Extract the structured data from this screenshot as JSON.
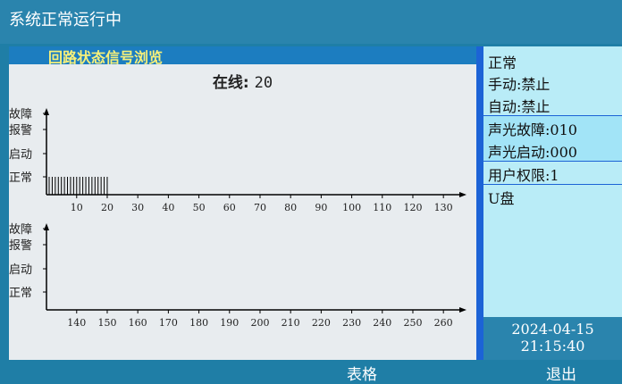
{
  "status_text": "系统正常运行中",
  "panel": {
    "title": "回路状态信号浏览",
    "online_label": "在线:",
    "online_count": "20"
  },
  "chart_data": [
    {
      "type": "bar",
      "y_levels": [
        "故障",
        "报警",
        "启动",
        "正常"
      ],
      "x_ticks": [
        10,
        20,
        30,
        40,
        50,
        60,
        70,
        80,
        90,
        100,
        110,
        120,
        130
      ],
      "xlim": [
        1,
        135
      ],
      "points": [
        {
          "loop": 1,
          "state": "正常"
        },
        {
          "loop": 2,
          "state": "正常"
        },
        {
          "loop": 3,
          "state": "正常"
        },
        {
          "loop": 4,
          "state": "正常"
        },
        {
          "loop": 5,
          "state": "正常"
        },
        {
          "loop": 6,
          "state": "正常"
        },
        {
          "loop": 7,
          "state": "正常"
        },
        {
          "loop": 8,
          "state": "正常"
        },
        {
          "loop": 9,
          "state": "正常"
        },
        {
          "loop": 10,
          "state": "正常"
        },
        {
          "loop": 11,
          "state": "正常"
        },
        {
          "loop": 12,
          "state": "正常"
        },
        {
          "loop": 13,
          "state": "正常"
        },
        {
          "loop": 14,
          "state": "正常"
        },
        {
          "loop": 15,
          "state": "正常"
        },
        {
          "loop": 16,
          "state": "正常"
        },
        {
          "loop": 17,
          "state": "正常"
        },
        {
          "loop": 18,
          "state": "正常"
        },
        {
          "loop": 19,
          "state": "正常"
        },
        {
          "loop": 20,
          "state": "正常"
        }
      ]
    },
    {
      "type": "bar",
      "y_levels": [
        "故障",
        "报警",
        "启动",
        "正常"
      ],
      "x_ticks": [
        140,
        150,
        160,
        170,
        180,
        190,
        200,
        210,
        220,
        230,
        240,
        250,
        260
      ],
      "xlim": [
        131,
        265
      ],
      "points": []
    }
  ],
  "sidebar": {
    "state": "正常",
    "manual": "手动:禁止",
    "auto": "自动:禁止",
    "av_fault": "声光故障:010",
    "av_start": "声光启动:000",
    "permission": "用户权限:1",
    "usb": "U盘"
  },
  "datetime": {
    "date": "2024-04-15",
    "time": "21:15:40"
  },
  "buttons": {
    "table": "表格",
    "exit": "退出"
  },
  "colors": {
    "background": "#1f7ea6",
    "header_yellow": "#f7f07a",
    "accent_blue": "#1c63d6",
    "side_panel": "#b9ecf7"
  }
}
